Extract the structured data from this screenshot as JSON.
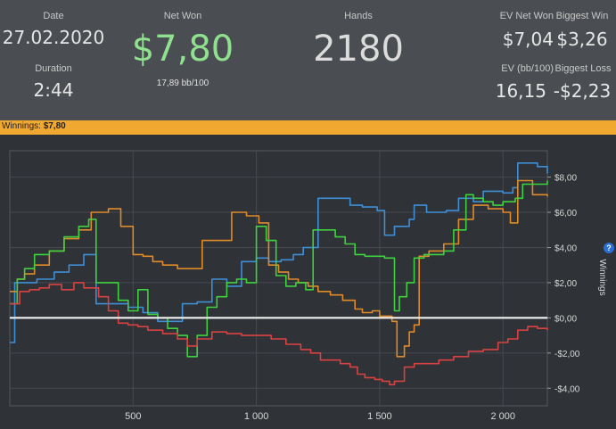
{
  "header": {
    "date_label": "Date",
    "date_value": "27.02.2020",
    "duration_label": "Duration",
    "duration_value": "2:44",
    "netwon_label": "Net Won",
    "netwon_value": "$7,80",
    "netwon_sub": "17,89 bb/100",
    "hands_label": "Hands",
    "hands_value": "2180",
    "ev_net_won_label": "EV Net Won",
    "ev_net_won_value": "$7,04",
    "biggest_win_label": "Biggest Win",
    "biggest_win_value": "$3,26",
    "ev_bb_label": "EV (bb/100)",
    "ev_bb_value": "16,15",
    "biggest_loss_label": "Biggest Loss",
    "biggest_loss_value": "-$2,23"
  },
  "bar": {
    "label": "Winnings:",
    "value": "$7,80",
    "help": "?"
  },
  "colors": {
    "header_bg": "#4a4d51",
    "bar_bg": "#f0a830",
    "net_won_green": "#8fe08f",
    "green": "#3fd23f",
    "blue": "#3e8fd8",
    "orange": "#e08a2a",
    "red": "#d94242",
    "zero_line": "#ffffff"
  },
  "chart_data": {
    "type": "line",
    "xlabel": "",
    "ylabel": "Winnings",
    "xlim": [
      0,
      2180
    ],
    "ylim": [
      -5,
      9.5
    ],
    "x_ticks": [
      500,
      1000,
      1500,
      2000
    ],
    "x_tick_labels": [
      "500",
      "1 000",
      "1 500",
      "2 000"
    ],
    "y_ticks": [
      8,
      6,
      4,
      2,
      0,
      -2,
      -4
    ],
    "y_tick_labels": [
      "$8,00",
      "$6,00",
      "$4,00",
      "$2,00",
      "$0,00",
      "-$2,00",
      "-$4,00"
    ],
    "grid": true,
    "series": [
      {
        "color": "#3e8fd8",
        "points": [
          [
            0,
            -1.4
          ],
          [
            20,
            2.0
          ],
          [
            60,
            2.0
          ],
          [
            110,
            2.2
          ],
          [
            180,
            2.6
          ],
          [
            240,
            3.0
          ],
          [
            300,
            3.6
          ],
          [
            350,
            0.8
          ],
          [
            420,
            0.8
          ],
          [
            480,
            0.6
          ],
          [
            540,
            0.3
          ],
          [
            600,
            -0.2
          ],
          [
            660,
            -0.2
          ],
          [
            700,
            0.8
          ],
          [
            760,
            0.9
          ],
          [
            820,
            2.2
          ],
          [
            880,
            1.8
          ],
          [
            940,
            3.2
          ],
          [
            1000,
            3.4
          ],
          [
            1050,
            3.2
          ],
          [
            1100,
            3.3
          ],
          [
            1150,
            3.6
          ],
          [
            1190,
            4.0
          ],
          [
            1250,
            6.8
          ],
          [
            1320,
            6.8
          ],
          [
            1380,
            6.4
          ],
          [
            1430,
            6.3
          ],
          [
            1490,
            6.1
          ],
          [
            1520,
            4.7
          ],
          [
            1560,
            5.2
          ],
          [
            1620,
            5.6
          ],
          [
            1640,
            6.4
          ],
          [
            1690,
            6.0
          ],
          [
            1770,
            6.1
          ],
          [
            1820,
            6.8
          ],
          [
            1880,
            6.6
          ],
          [
            1920,
            7.2
          ],
          [
            1970,
            7.2
          ],
          [
            2000,
            7.1
          ],
          [
            2040,
            7.4
          ],
          [
            2060,
            8.8
          ],
          [
            2140,
            8.6
          ],
          [
            2180,
            8.2
          ]
        ]
      },
      {
        "color": "#e08a2a",
        "points": [
          [
            0,
            1.5
          ],
          [
            30,
            2.2
          ],
          [
            60,
            2.5
          ],
          [
            100,
            3.0
          ],
          [
            160,
            3.8
          ],
          [
            220,
            4.5
          ],
          [
            280,
            5.0
          ],
          [
            330,
            6.0
          ],
          [
            400,
            6.2
          ],
          [
            450,
            5.2
          ],
          [
            500,
            3.6
          ],
          [
            540,
            3.5
          ],
          [
            580,
            3.2
          ],
          [
            620,
            3.0
          ],
          [
            680,
            2.8
          ],
          [
            740,
            2.8
          ],
          [
            780,
            4.4
          ],
          [
            820,
            4.4
          ],
          [
            900,
            6.0
          ],
          [
            960,
            5.8
          ],
          [
            1010,
            5.4
          ],
          [
            1050,
            3.0
          ],
          [
            1090,
            2.6
          ],
          [
            1130,
            2.2
          ],
          [
            1170,
            2.0
          ],
          [
            1210,
            1.8
          ],
          [
            1250,
            1.5
          ],
          [
            1300,
            1.3
          ],
          [
            1350,
            1.0
          ],
          [
            1400,
            0.5
          ],
          [
            1430,
            0.3
          ],
          [
            1470,
            0.4
          ],
          [
            1500,
            0.1
          ],
          [
            1550,
            -0.2
          ],
          [
            1570,
            -2.2
          ],
          [
            1600,
            -1.6
          ],
          [
            1620,
            -0.8
          ],
          [
            1640,
            -0.4
          ],
          [
            1660,
            3.5
          ],
          [
            1700,
            3.8
          ],
          [
            1760,
            4.2
          ],
          [
            1820,
            5.6
          ],
          [
            1880,
            6.4
          ],
          [
            1940,
            6.2
          ],
          [
            2000,
            6.0
          ],
          [
            2030,
            5.4
          ],
          [
            2060,
            7.8
          ],
          [
            2120,
            7.0
          ],
          [
            2180,
            6.9
          ]
        ]
      },
      {
        "color": "#3fd23f",
        "points": [
          [
            0,
            0.8
          ],
          [
            30,
            2.2
          ],
          [
            60,
            2.8
          ],
          [
            100,
            3.6
          ],
          [
            160,
            3.8
          ],
          [
            220,
            4.6
          ],
          [
            280,
            5.2
          ],
          [
            320,
            5.6
          ],
          [
            350,
            2.0
          ],
          [
            400,
            2.0
          ],
          [
            440,
            1.0
          ],
          [
            480,
            0.4
          ],
          [
            520,
            1.6
          ],
          [
            560,
            0.2
          ],
          [
            600,
            0.0
          ],
          [
            640,
            -0.6
          ],
          [
            680,
            -1.0
          ],
          [
            720,
            -2.2
          ],
          [
            760,
            -1.0
          ],
          [
            800,
            0.6
          ],
          [
            840,
            1.2
          ],
          [
            880,
            2.0
          ],
          [
            920,
            2.2
          ],
          [
            960,
            2.0
          ],
          [
            1000,
            5.2
          ],
          [
            1040,
            4.4
          ],
          [
            1080,
            2.4
          ],
          [
            1120,
            1.8
          ],
          [
            1160,
            2.0
          ],
          [
            1200,
            1.6
          ],
          [
            1230,
            5.0
          ],
          [
            1280,
            5.0
          ],
          [
            1320,
            4.6
          ],
          [
            1360,
            4.2
          ],
          [
            1400,
            3.6
          ],
          [
            1440,
            3.5
          ],
          [
            1480,
            3.5
          ],
          [
            1520,
            3.4
          ],
          [
            1560,
            0.4
          ],
          [
            1580,
            1.2
          ],
          [
            1610,
            2.0
          ],
          [
            1640,
            3.4
          ],
          [
            1680,
            3.6
          ],
          [
            1720,
            3.6
          ],
          [
            1760,
            3.8
          ],
          [
            1800,
            5.0
          ],
          [
            1850,
            7.0
          ],
          [
            1880,
            6.8
          ],
          [
            1920,
            6.6
          ],
          [
            1960,
            6.4
          ],
          [
            2000,
            6.6
          ],
          [
            2050,
            6.8
          ],
          [
            2080,
            7.6
          ],
          [
            2130,
            7.6
          ],
          [
            2180,
            7.8
          ]
        ]
      },
      {
        "color": "#d94242",
        "points": [
          [
            0,
            0.8
          ],
          [
            40,
            1.5
          ],
          [
            80,
            1.6
          ],
          [
            120,
            1.7
          ],
          [
            160,
            1.9
          ],
          [
            210,
            1.6
          ],
          [
            260,
            2.0
          ],
          [
            300,
            1.7
          ],
          [
            360,
            1.2
          ],
          [
            400,
            0.4
          ],
          [
            440,
            -0.3
          ],
          [
            480,
            -0.4
          ],
          [
            520,
            -0.5
          ],
          [
            560,
            -0.7
          ],
          [
            620,
            -0.9
          ],
          [
            680,
            -1.2
          ],
          [
            720,
            -1.6
          ],
          [
            760,
            -1.2
          ],
          [
            820,
            -0.8
          ],
          [
            880,
            -0.9
          ],
          [
            940,
            -1.0
          ],
          [
            1000,
            -1.0
          ],
          [
            1060,
            -1.2
          ],
          [
            1120,
            -1.5
          ],
          [
            1180,
            -1.8
          ],
          [
            1220,
            -2.0
          ],
          [
            1260,
            -2.4
          ],
          [
            1300,
            -2.4
          ],
          [
            1340,
            -2.6
          ],
          [
            1380,
            -2.8
          ],
          [
            1410,
            -3.2
          ],
          [
            1440,
            -3.4
          ],
          [
            1480,
            -3.5
          ],
          [
            1510,
            -3.6
          ],
          [
            1540,
            -3.8
          ],
          [
            1560,
            -3.6
          ],
          [
            1600,
            -2.8
          ],
          [
            1640,
            -2.6
          ],
          [
            1680,
            -2.6
          ],
          [
            1740,
            -2.4
          ],
          [
            1800,
            -2.2
          ],
          [
            1860,
            -1.9
          ],
          [
            1920,
            -1.8
          ],
          [
            1980,
            -1.4
          ],
          [
            2020,
            -1.2
          ],
          [
            2060,
            -0.7
          ],
          [
            2100,
            -0.5
          ],
          [
            2140,
            -0.6
          ],
          [
            2180,
            -0.7
          ]
        ]
      }
    ]
  }
}
